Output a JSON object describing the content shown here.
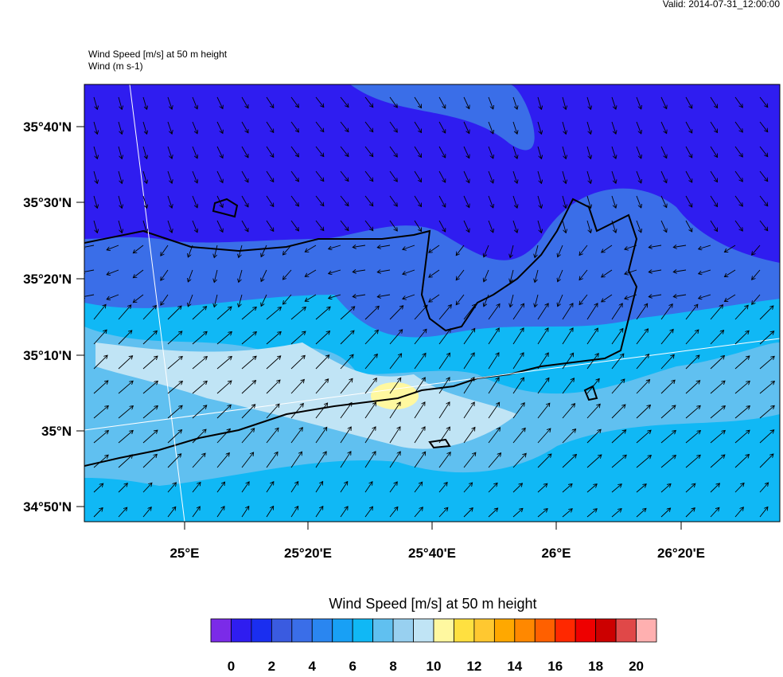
{
  "header": {
    "valid": "Valid: 2014-07-31_12:00:00"
  },
  "map": {
    "title": "Wind Speed [m/s] at 50 m height",
    "subtitle": "Wind   (m s-1)",
    "lat_labels": [
      "35°40'N",
      "35°30'N",
      "35°20'N",
      "35°10'N",
      "35°N",
      "34°50'N"
    ],
    "lon_labels": [
      "25°E",
      "25°20'E",
      "25°40'E",
      "26°E",
      "26°20'E"
    ]
  },
  "colorbar": {
    "title": "Wind Speed [m/s] at 50 m height",
    "colors": [
      "#7b2be8",
      "#2f1df0",
      "#1a2ef0",
      "#3a5be0",
      "#3a6ee8",
      "#2a86f0",
      "#18a0f5",
      "#10b8f5",
      "#60c0f0",
      "#98d0f0",
      "#c0e4f5",
      "#fff8a0",
      "#ffe040",
      "#ffc830",
      "#ffa800",
      "#ff8800",
      "#ff6000",
      "#ff2800",
      "#ee0000",
      "#cc0000",
      "#e04848",
      "#ffb0b0"
    ],
    "labels": [
      0,
      2,
      4,
      6,
      8,
      10,
      12,
      14,
      16,
      18,
      20
    ]
  }
}
